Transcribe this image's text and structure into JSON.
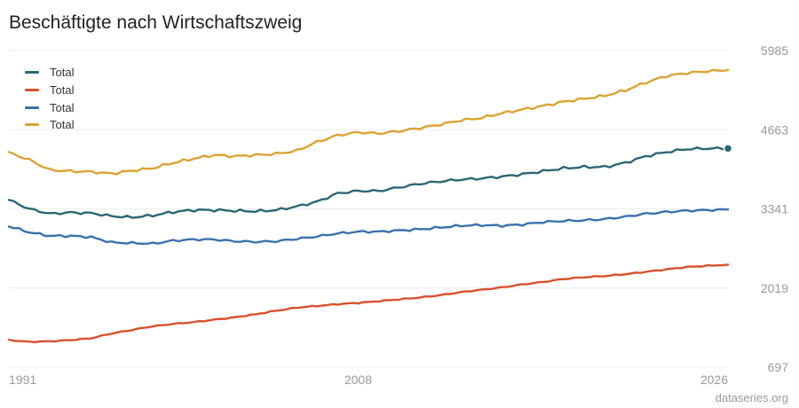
{
  "title": "Beschäftigte nach Wirtschaftszweig",
  "footer": "dataseries.org",
  "colors": {
    "grid": "#eeeeee",
    "tick_text": "#999999",
    "series": [
      "#2b6773",
      "#d9512c",
      "#3a72ad",
      "#dba334"
    ]
  },
  "chart_data": {
    "type": "line",
    "xlim": [
      1991,
      2026
    ],
    "ylim": [
      697,
      5985
    ],
    "x_ticks": [
      "1991",
      "2008",
      "2026"
    ],
    "y_ticks": [
      "697",
      "2019",
      "3341",
      "4663",
      "5985"
    ],
    "grid": true,
    "legend_position": "top-left",
    "series": [
      {
        "name": "Total",
        "anchors": [
          [
            1991,
            3490
          ],
          [
            1992,
            3340
          ],
          [
            1993,
            3260
          ],
          [
            1994,
            3280
          ],
          [
            1995,
            3270
          ],
          [
            1996,
            3220
          ],
          [
            1997,
            3200
          ],
          [
            1998,
            3230
          ],
          [
            1999,
            3290
          ],
          [
            2000,
            3320
          ],
          [
            2001,
            3320
          ],
          [
            2002,
            3310
          ],
          [
            2003,
            3300
          ],
          [
            2004,
            3320
          ],
          [
            2005,
            3380
          ],
          [
            2006,
            3460
          ],
          [
            2007,
            3600
          ],
          [
            2008,
            3640
          ],
          [
            2009,
            3640
          ],
          [
            2010,
            3700
          ],
          [
            2011,
            3760
          ],
          [
            2012,
            3800
          ],
          [
            2013,
            3830
          ],
          [
            2014,
            3850
          ],
          [
            2015,
            3880
          ],
          [
            2016,
            3920
          ],
          [
            2017,
            3970
          ],
          [
            2018,
            4020
          ],
          [
            2019,
            4040
          ],
          [
            2020,
            4040
          ],
          [
            2021,
            4110
          ],
          [
            2022,
            4220
          ],
          [
            2023,
            4290
          ],
          [
            2024,
            4340
          ],
          [
            2025,
            4350
          ],
          [
            2026,
            4350
          ]
        ]
      },
      {
        "name": "Total",
        "anchors": [
          [
            1991,
            1150
          ],
          [
            1992,
            1120
          ],
          [
            1993,
            1130
          ],
          [
            1994,
            1150
          ],
          [
            1995,
            1180
          ],
          [
            1996,
            1260
          ],
          [
            1997,
            1320
          ],
          [
            1998,
            1380
          ],
          [
            1999,
            1420
          ],
          [
            2000,
            1450
          ],
          [
            2001,
            1490
          ],
          [
            2002,
            1530
          ],
          [
            2003,
            1580
          ],
          [
            2004,
            1640
          ],
          [
            2005,
            1690
          ],
          [
            2006,
            1720
          ],
          [
            2007,
            1750
          ],
          [
            2008,
            1770
          ],
          [
            2009,
            1800
          ],
          [
            2010,
            1830
          ],
          [
            2011,
            1860
          ],
          [
            2012,
            1900
          ],
          [
            2013,
            1950
          ],
          [
            2014,
            1990
          ],
          [
            2015,
            2030
          ],
          [
            2016,
            2080
          ],
          [
            2017,
            2120
          ],
          [
            2018,
            2170
          ],
          [
            2019,
            2200
          ],
          [
            2020,
            2220
          ],
          [
            2021,
            2250
          ],
          [
            2022,
            2290
          ],
          [
            2023,
            2330
          ],
          [
            2024,
            2370
          ],
          [
            2025,
            2390
          ],
          [
            2026,
            2410
          ]
        ]
      },
      {
        "name": "Total",
        "anchors": [
          [
            1991,
            3050
          ],
          [
            1992,
            2950
          ],
          [
            1993,
            2890
          ],
          [
            1994,
            2890
          ],
          [
            1995,
            2870
          ],
          [
            1996,
            2780
          ],
          [
            1997,
            2770
          ],
          [
            1998,
            2760
          ],
          [
            1999,
            2810
          ],
          [
            2000,
            2830
          ],
          [
            2001,
            2830
          ],
          [
            2002,
            2800
          ],
          [
            2003,
            2790
          ],
          [
            2004,
            2800
          ],
          [
            2005,
            2840
          ],
          [
            2006,
            2880
          ],
          [
            2007,
            2930
          ],
          [
            2008,
            2960
          ],
          [
            2009,
            2960
          ],
          [
            2010,
            2980
          ],
          [
            2011,
            3000
          ],
          [
            2012,
            3030
          ],
          [
            2013,
            3060
          ],
          [
            2014,
            3070
          ],
          [
            2015,
            3060
          ],
          [
            2016,
            3080
          ],
          [
            2017,
            3120
          ],
          [
            2018,
            3140
          ],
          [
            2019,
            3150
          ],
          [
            2020,
            3170
          ],
          [
            2021,
            3210
          ],
          [
            2022,
            3260
          ],
          [
            2023,
            3290
          ],
          [
            2024,
            3310
          ],
          [
            2025,
            3320
          ],
          [
            2026,
            3330
          ]
        ]
      },
      {
        "name": "Total",
        "anchors": [
          [
            1991,
            4280
          ],
          [
            1992,
            4160
          ],
          [
            1993,
            3990
          ],
          [
            1994,
            3970
          ],
          [
            1995,
            3960
          ],
          [
            1996,
            3930
          ],
          [
            1997,
            3980
          ],
          [
            1998,
            4020
          ],
          [
            1999,
            4110
          ],
          [
            2000,
            4180
          ],
          [
            2001,
            4240
          ],
          [
            2002,
            4220
          ],
          [
            2003,
            4240
          ],
          [
            2004,
            4260
          ],
          [
            2005,
            4310
          ],
          [
            2006,
            4460
          ],
          [
            2007,
            4570
          ],
          [
            2008,
            4620
          ],
          [
            2009,
            4600
          ],
          [
            2010,
            4640
          ],
          [
            2011,
            4690
          ],
          [
            2012,
            4750
          ],
          [
            2013,
            4820
          ],
          [
            2014,
            4860
          ],
          [
            2015,
            4940
          ],
          [
            2016,
            5000
          ],
          [
            2017,
            5060
          ],
          [
            2018,
            5130
          ],
          [
            2019,
            5180
          ],
          [
            2020,
            5230
          ],
          [
            2021,
            5320
          ],
          [
            2022,
            5450
          ],
          [
            2023,
            5560
          ],
          [
            2024,
            5610
          ],
          [
            2025,
            5640
          ],
          [
            2026,
            5660
          ]
        ]
      }
    ]
  }
}
